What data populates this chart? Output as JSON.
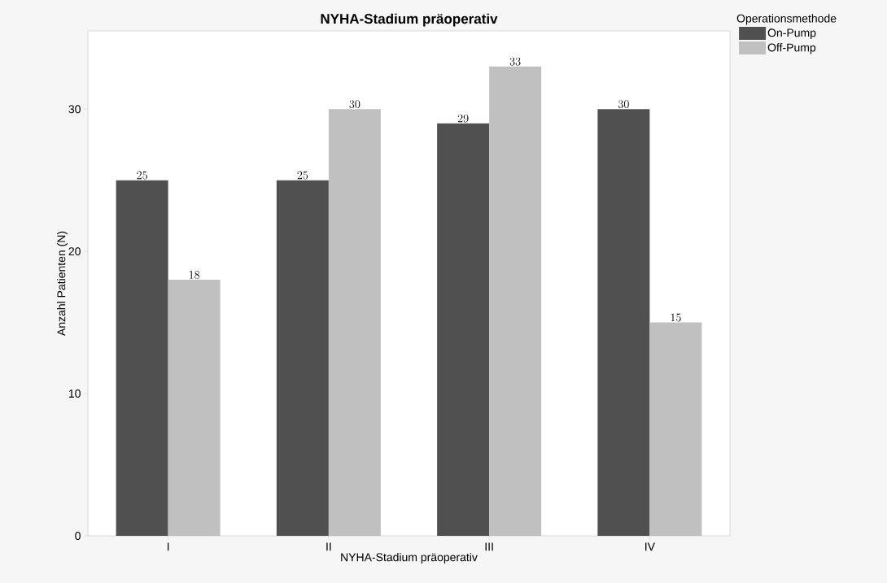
{
  "chart_data": {
    "type": "bar",
    "title": "NYHA-Stadium präoperativ",
    "xlabel": "NYHA-Stadium präoperativ",
    "ylabel": "Anzahl Patienten (N)",
    "legend_title": "Operationsmethode",
    "categories": [
      "I",
      "II",
      "III",
      "IV"
    ],
    "series": [
      {
        "name": "On-Pump",
        "color": "#505050",
        "values": [
          25,
          25,
          29,
          30
        ]
      },
      {
        "name": "Off-Pump",
        "color": "#c0c0c0",
        "values": [
          18,
          30,
          33,
          15
        ]
      }
    ],
    "ylim": [
      0,
      35.5
    ],
    "yticks": [
      0,
      10,
      20,
      30
    ],
    "grid": false,
    "legend": "top right",
    "data_labels": true
  }
}
